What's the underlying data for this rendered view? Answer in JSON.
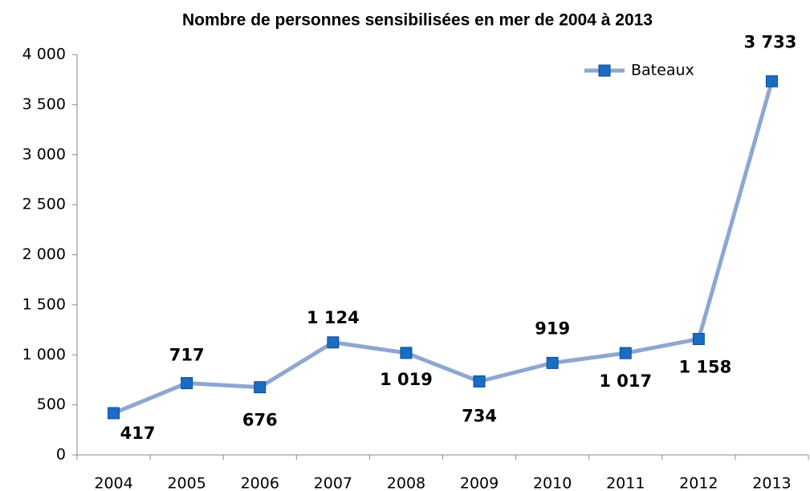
{
  "chart_data": {
    "type": "line",
    "title": "Nombre de personnes sensibilisées en mer de 2004 à 2013",
    "categories": [
      "2004",
      "2005",
      "2006",
      "2007",
      "2008",
      "2009",
      "2010",
      "2011",
      "2012",
      "2013"
    ],
    "series": [
      {
        "name": "Bateaux",
        "color": "#8ea7d1",
        "marker_color": "#1a6cc4",
        "values": [
          417,
          717,
          676,
          1124,
          1019,
          734,
          919,
          1017,
          1158,
          3733
        ],
        "value_labels": [
          "417",
          "717",
          "676",
          "1 124",
          "1 019",
          "734",
          "919",
          "1 017",
          "1 158",
          "3 733"
        ]
      }
    ],
    "ylim": [
      0,
      4000
    ],
    "yticks": [
      0,
      500,
      {
        "value": 1000,
        "label": "1 000"
      },
      {
        "value": 1500,
        "label": "1 500"
      },
      {
        "value": 2000,
        "label": "2 000"
      },
      {
        "value": 2500,
        "label": "2 500"
      },
      {
        "value": 3000,
        "label": "3 000"
      },
      {
        "value": 3500,
        "label": "3 500"
      },
      {
        "value": 4000,
        "label": "4 000"
      }
    ],
    "grid": false,
    "legend": "upper right"
  }
}
